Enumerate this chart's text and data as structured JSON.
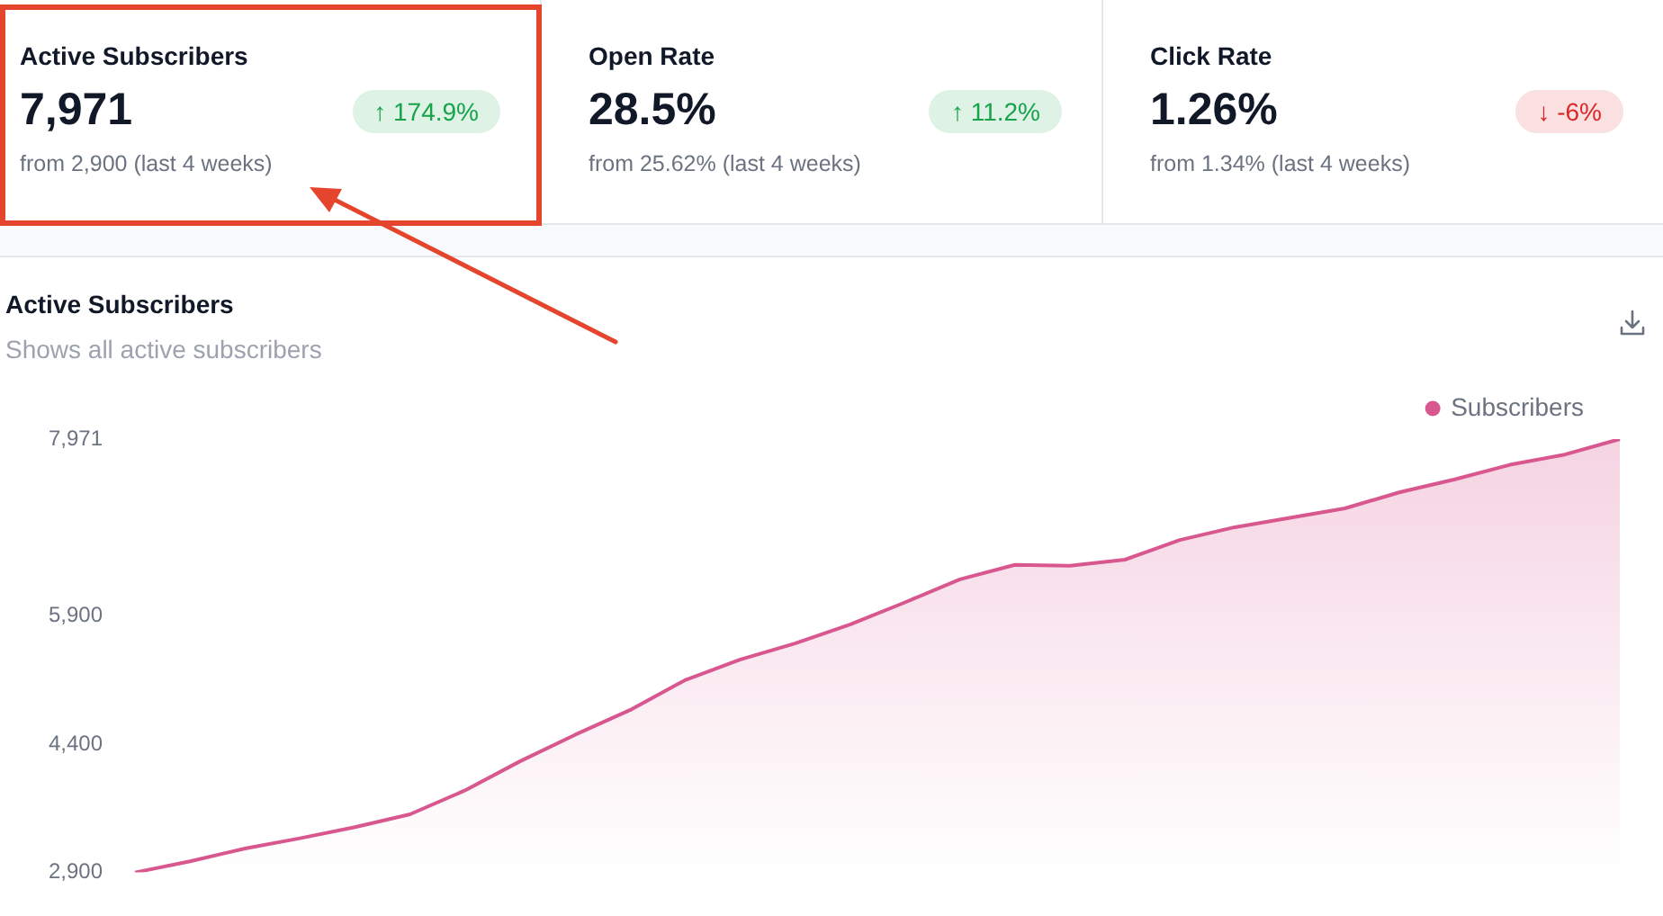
{
  "chart_data": [
    {
      "type": "other",
      "title": "Active Subscribers",
      "annotations": [
        "7,971",
        "↑ 174.9%",
        "from 2,900 (last 4 weeks)"
      ],
      "color": "#16a34a"
    },
    {
      "type": "other",
      "title": "Open Rate",
      "annotations": [
        "28.5%",
        "↑ 11.2%",
        "from 25.62% (last 4 weeks)"
      ],
      "color": "#16a34a"
    },
    {
      "type": "other",
      "title": "Click Rate",
      "annotations": [
        "1.26%",
        "↓ -6%",
        "from 1.34% (last 4 weeks)"
      ],
      "color": "#dc2626"
    },
    {
      "type": "area",
      "title": "Active Subscribers",
      "subtitle": "Shows all active subscribers",
      "categories": [
        null,
        null,
        null,
        null,
        null,
        null,
        null,
        null,
        null,
        null,
        null,
        null,
        null,
        null,
        null,
        null,
        null,
        null,
        null,
        null,
        null,
        null,
        null,
        null,
        null,
        null,
        null,
        null
      ],
      "series": [
        {
          "name": "Subscribers",
          "color": "#d9578f",
          "values": [
            2900,
            3030,
            3180,
            3300,
            3430,
            3580,
            3860,
            4200,
            4510,
            4800,
            5150,
            5390,
            5580,
            5800,
            6060,
            6330,
            6500,
            6490,
            6560,
            6790,
            6940,
            7050,
            7160,
            7350,
            7500,
            7670,
            7790,
            7971
          ]
        }
      ],
      "ylim": [
        2900,
        7971
      ],
      "yticks": [
        {
          "value": 2900,
          "label": "2,900"
        },
        {
          "value": 4400,
          "label": "4,400"
        },
        {
          "value": 5900,
          "label": "5,900"
        },
        {
          "value": 7971,
          "label": "7,971"
        }
      ],
      "tick_labels": "y",
      "grid": false,
      "legend": "top right"
    }
  ]
}
